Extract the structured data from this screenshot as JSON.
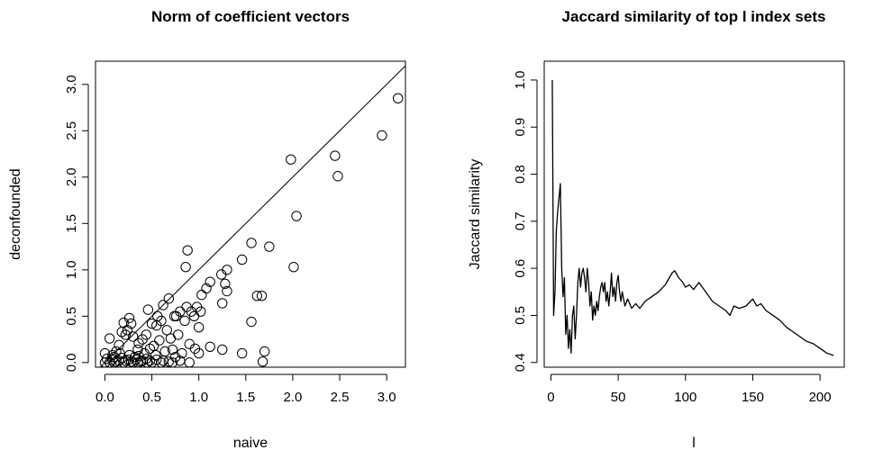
{
  "chart_data": [
    {
      "type": "scatter",
      "title": "Norm of coefficient vectors",
      "xlabel": "naive",
      "ylabel": "deconfounded",
      "xlim": [
        -0.1,
        3.2
      ],
      "ylim": [
        -0.05,
        3.25
      ],
      "xticks": [
        0,
        0.5,
        1,
        1.5,
        2,
        2.5,
        3
      ],
      "xtick_labels": [
        "0.0",
        "0.5",
        "1.0",
        "1.5",
        "2.0",
        "2.5",
        "3.0"
      ],
      "yticks": [
        0,
        0.5,
        1,
        1.5,
        2,
        2.5,
        3
      ],
      "ytick_labels": [
        "0.0",
        "0.5",
        "1.0",
        "1.5",
        "2.0",
        "2.5",
        "3.0"
      ],
      "reference_line": "y = x",
      "points": [
        [
          3.12,
          2.85
        ],
        [
          2.95,
          2.45
        ],
        [
          2.45,
          2.23
        ],
        [
          2.48,
          2.01
        ],
        [
          1.98,
          2.19
        ],
        [
          2.04,
          1.58
        ],
        [
          2.01,
          1.03
        ],
        [
          1.75,
          1.25
        ],
        [
          1.56,
          1.29
        ],
        [
          1.46,
          1.11
        ],
        [
          1.3,
          1.0
        ],
        [
          1.24,
          0.95
        ],
        [
          1.28,
          0.85
        ],
        [
          1.3,
          0.77
        ],
        [
          1.12,
          0.87
        ],
        [
          1.08,
          0.8
        ],
        [
          1.03,
          0.73
        ],
        [
          1.02,
          0.55
        ],
        [
          0.98,
          0.6
        ],
        [
          0.95,
          0.5
        ],
        [
          0.88,
          1.21
        ],
        [
          0.86,
          1.03
        ],
        [
          0.87,
          0.6
        ],
        [
          0.8,
          0.55
        ],
        [
          0.74,
          0.5
        ],
        [
          0.68,
          0.69
        ],
        [
          0.62,
          0.62
        ],
        [
          0.6,
          0.45
        ],
        [
          0.55,
          0.4
        ],
        [
          0.5,
          0.42
        ],
        [
          0.46,
          0.57
        ],
        [
          0.44,
          0.3
        ],
        [
          0.4,
          0.25
        ],
        [
          0.36,
          0.21
        ],
        [
          0.3,
          0.28
        ],
        [
          0.28,
          0.42
        ],
        [
          0.26,
          0.48
        ],
        [
          0.24,
          0.35
        ],
        [
          0.22,
          0.3
        ],
        [
          0.2,
          0.43
        ],
        [
          0.18,
          0.33
        ],
        [
          0.15,
          0.19
        ],
        [
          0.12,
          0.12
        ],
        [
          0.08,
          0.08
        ],
        [
          0.05,
          0.26
        ],
        [
          1.25,
          0.64
        ],
        [
          1.25,
          0.14
        ],
        [
          1.12,
          0.17
        ],
        [
          1.0,
          0.38
        ],
        [
          0.96,
          0.15
        ],
        [
          0.85,
          0.45
        ],
        [
          0.82,
          0.1
        ],
        [
          0.78,
          0.3
        ],
        [
          0.7,
          0.26
        ],
        [
          0.66,
          0.35
        ],
        [
          0.58,
          0.24
        ],
        [
          0.52,
          0.18
        ],
        [
          0.48,
          0.15
        ],
        [
          0.42,
          0.1
        ],
        [
          0.35,
          0.14
        ],
        [
          0.32,
          0.06
        ],
        [
          1.56,
          0.44
        ],
        [
          1.62,
          0.72
        ],
        [
          1.67,
          0.72
        ],
        [
          1.7,
          0.12
        ],
        [
          1.68,
          0.01
        ],
        [
          1.46,
          0.1
        ],
        [
          1.0,
          0.1
        ],
        [
          0.9,
          0.0
        ],
        [
          0.75,
          0.06
        ],
        [
          0.62,
          0.02
        ],
        [
          0.5,
          0.0
        ],
        [
          0.45,
          0.0
        ],
        [
          0.4,
          0.02
        ],
        [
          0.35,
          0.0
        ],
        [
          0.3,
          0.0
        ],
        [
          0.25,
          0.03
        ],
        [
          0.2,
          0.0
        ],
        [
          0.15,
          0.02
        ],
        [
          0.1,
          0.0
        ],
        [
          0.05,
          0.0
        ],
        [
          0.0,
          0.0
        ],
        [
          0.02,
          0.04
        ],
        [
          0.08,
          0.03
        ],
        [
          0.12,
          0.01
        ],
        [
          0.18,
          0.05
        ],
        [
          0.22,
          0.02
        ],
        [
          0.28,
          0.01
        ],
        [
          0.33,
          0.03
        ],
        [
          0.38,
          0.01
        ],
        [
          0.44,
          0.04
        ],
        [
          0.48,
          0.02
        ],
        [
          0.55,
          0.03
        ],
        [
          0.6,
          0.0
        ],
        [
          0.68,
          0.01
        ],
        [
          0.72,
          0.0
        ],
        [
          0.8,
          0.02
        ],
        [
          0.0,
          0.1
        ],
        [
          0.1,
          0.06
        ],
        [
          0.16,
          0.1
        ],
        [
          0.26,
          0.08
        ],
        [
          0.36,
          0.07
        ],
        [
          0.54,
          0.08
        ],
        [
          0.64,
          0.12
        ],
        [
          0.72,
          0.14
        ],
        [
          0.9,
          0.2
        ],
        [
          0.92,
          0.55
        ],
        [
          0.76,
          0.5
        ],
        [
          0.56,
          0.5
        ]
      ]
    },
    {
      "type": "line",
      "title": "Jaccard similarity of top l index sets",
      "xlabel": "l",
      "ylabel": "Jaccard similarity",
      "xlim": [
        -5,
        218
      ],
      "ylim": [
        0.39,
        1.04
      ],
      "xticks": [
        0,
        50,
        100,
        150,
        200
      ],
      "xtick_labels": [
        "0",
        "50",
        "100",
        "150",
        "200"
      ],
      "yticks": [
        0.4,
        0.5,
        0.6,
        0.7,
        0.8,
        0.9,
        1.0
      ],
      "ytick_labels": [
        "0.4",
        "0.5",
        "0.6",
        "0.7",
        "0.8",
        "0.9",
        "1.0"
      ],
      "x": [
        1,
        2,
        3,
        4,
        5,
        6,
        7,
        8,
        9,
        10,
        11,
        12,
        13,
        14,
        15,
        16,
        17,
        18,
        19,
        20,
        21,
        22,
        23,
        24,
        25,
        26,
        27,
        28,
        29,
        30,
        31,
        32,
        33,
        34,
        35,
        36,
        37,
        38,
        39,
        40,
        41,
        42,
        43,
        44,
        45,
        46,
        47,
        48,
        49,
        50,
        51,
        52,
        53,
        55,
        57,
        60,
        63,
        66,
        70,
        75,
        80,
        85,
        88,
        90,
        92,
        95,
        98,
        100,
        103,
        106,
        110,
        115,
        120,
        125,
        130,
        133,
        136,
        140,
        145,
        150,
        153,
        156,
        160,
        165,
        170,
        175,
        180,
        185,
        190,
        195,
        200,
        205,
        210
      ],
      "y": [
        1.0,
        0.5,
        0.55,
        0.68,
        0.72,
        0.75,
        0.78,
        0.6,
        0.54,
        0.58,
        0.46,
        0.5,
        0.43,
        0.47,
        0.42,
        0.5,
        0.52,
        0.45,
        0.5,
        0.57,
        0.6,
        0.56,
        0.59,
        0.6,
        0.58,
        0.55,
        0.6,
        0.57,
        0.52,
        0.55,
        0.49,
        0.52,
        0.5,
        0.53,
        0.51,
        0.54,
        0.56,
        0.57,
        0.55,
        0.57,
        0.53,
        0.55,
        0.52,
        0.55,
        0.59,
        0.54,
        0.56,
        0.53,
        0.57,
        0.585,
        0.55,
        0.53,
        0.55,
        0.52,
        0.535,
        0.515,
        0.525,
        0.515,
        0.53,
        0.54,
        0.55,
        0.565,
        0.58,
        0.59,
        0.595,
        0.58,
        0.57,
        0.56,
        0.565,
        0.555,
        0.57,
        0.55,
        0.53,
        0.52,
        0.51,
        0.5,
        0.52,
        0.515,
        0.52,
        0.535,
        0.52,
        0.525,
        0.51,
        0.5,
        0.49,
        0.475,
        0.465,
        0.455,
        0.445,
        0.44,
        0.43,
        0.42,
        0.415
      ]
    }
  ]
}
